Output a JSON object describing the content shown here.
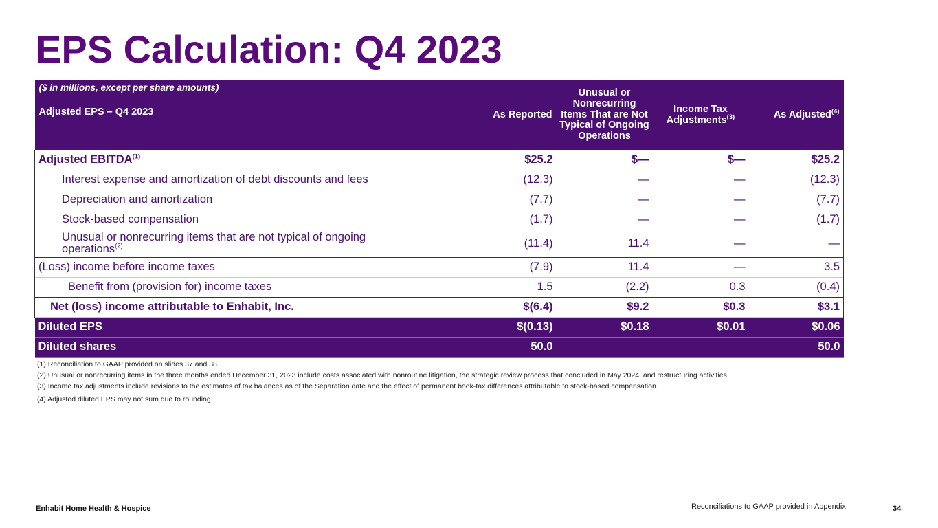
{
  "title": "EPS Calculation: Q4 2023",
  "table": {
    "units_note": "($ in millions, except per share amounts)",
    "row_header": "Adjusted EPS – Q4 2023",
    "columns": {
      "as_reported": "As Reported",
      "unusual": "Unusual or Nonrecurring Items That are Not Typical of Ongoing Operations",
      "income_tax": "Income Tax Adjustments",
      "income_tax_sup": "(3)",
      "as_adjusted": "As Adjusted",
      "as_adjusted_sup": "(4)"
    },
    "rows": [
      {
        "label": "Adjusted EBITDA",
        "sup": "(1)",
        "values": [
          "$25.2",
          "$—",
          "$—",
          "$25.2"
        ]
      },
      {
        "label": "Interest expense and amortization of debt discounts and fees",
        "values": [
          "(12.3)",
          "—",
          "—",
          "(12.3)"
        ]
      },
      {
        "label": "Depreciation and amortization",
        "values": [
          "(7.7)",
          "—",
          "—",
          "(7.7)"
        ]
      },
      {
        "label": "Stock-based compensation",
        "values": [
          "(1.7)",
          "—",
          "—",
          "(1.7)"
        ]
      },
      {
        "label": "Unusual or nonrecurring items that are not typical of ongoing operations",
        "sup": "(2)",
        "values": [
          "(11.4)",
          "11.4",
          "—",
          "—"
        ]
      },
      {
        "label": "(Loss) income before income taxes",
        "values": [
          "(7.9)",
          "11.4",
          "—",
          "3.5"
        ]
      },
      {
        "label": "Benefit from (provision for) income taxes",
        "values": [
          "1.5",
          "(2.2)",
          "0.3",
          "(0.4)"
        ]
      },
      {
        "label": "Net (loss) income attributable to Enhabit, Inc.",
        "values": [
          "$(6.4)",
          "$9.2",
          "$0.3",
          "$3.1"
        ]
      },
      {
        "label": "Diluted EPS",
        "values": [
          "$(0.13)",
          "$0.18",
          "$0.01",
          "$0.06"
        ]
      },
      {
        "label": "Diluted shares",
        "values": [
          "50.0",
          "",
          "",
          "50.0"
        ]
      }
    ]
  },
  "footnotes": [
    "(1) Reconciliation to GAAP provided on slides 37 and 38.",
    "(2) Unusual or nonrecurring items in the three months ended December 31, 2023 include costs associated with nonroutine litigation, the strategic review process that concluded in May 2024, and restructuring activities.",
    "(3) Income tax adjustments include revisions to the estimates of tax balances as of the Separation date and the effect of permanent book-tax differences attributable to stock-based compensation.",
    "(4) Adjusted diluted EPS may not sum due to rounding."
  ],
  "footer": {
    "company": "Enhabit Home Health & Hospice",
    "note": "Reconciliations to GAAP provided in Appendix",
    "page": "34"
  }
}
